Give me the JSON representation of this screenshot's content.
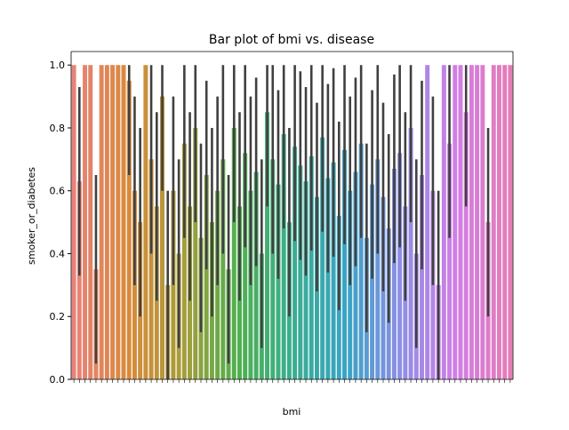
{
  "chart_data": {
    "type": "bar",
    "title": "Bar plot of bmi vs. disease",
    "x_label": "bmi",
    "y_label": "smoker_or_diabetes",
    "ylim": [
      0,
      1.043
    ],
    "yticks": [
      {
        "value": 0,
        "label": "0.0"
      },
      {
        "value": 0.2,
        "label": "0.2"
      },
      {
        "value": 0.4,
        "label": "0.4"
      },
      {
        "value": 0.6,
        "label": "0.6"
      },
      {
        "value": 0.8,
        "label": "0.8"
      },
      {
        "value": 1,
        "label": "1.0"
      }
    ],
    "palette": [
      "#e8827a",
      "#d98a3a",
      "#a69d3a",
      "#4fb04e",
      "#3aae8f",
      "#3aa4c6",
      "#8e8ee6",
      "#d17ee6",
      "#e57cb7"
    ],
    "error_color": "#404040",
    "categories": [
      null,
      null,
      null,
      null,
      null,
      null,
      null,
      null,
      null,
      null,
      null,
      null,
      null,
      null,
      null,
      null,
      null,
      null,
      null,
      null,
      null,
      null,
      null,
      null,
      null,
      null,
      null,
      null,
      null,
      null,
      null,
      null,
      null,
      null,
      null,
      null,
      null,
      null,
      null,
      null,
      null,
      null,
      null,
      null,
      null,
      null,
      null,
      null,
      null,
      null,
      null,
      null,
      null,
      null,
      null,
      null,
      null,
      null,
      null,
      null,
      null,
      null,
      null,
      null,
      null,
      null,
      null,
      null,
      null,
      null,
      null,
      null,
      null,
      null,
      null,
      null,
      null,
      null,
      null,
      null
    ],
    "values": [
      1,
      0.63,
      1,
      1,
      0.35,
      1,
      1,
      1,
      1,
      1,
      0.95,
      0.6,
      0.5,
      1,
      0.7,
      0.55,
      0.9,
      0.3,
      0.6,
      0.4,
      0.75,
      0.55,
      0.8,
      0.45,
      0.65,
      0.5,
      0.6,
      0.7,
      0.35,
      0.8,
      0.55,
      0.72,
      0.6,
      0.66,
      0.4,
      0.85,
      0.7,
      0.62,
      0.78,
      0.5,
      0.74,
      0.68,
      0.63,
      0.71,
      0.58,
      0.77,
      0.64,
      0.69,
      0.52,
      0.73,
      0.6,
      0.66,
      0.75,
      0.45,
      0.62,
      0.7,
      0.58,
      0.48,
      0.67,
      0.72,
      0.55,
      0.8,
      0.4,
      0.65,
      1,
      0.6,
      0.3,
      1,
      0.75,
      1,
      1,
      0.85,
      1,
      1,
      1,
      0.5,
      1,
      1,
      1,
      1
    ],
    "ci_low": [
      null,
      0.33,
      null,
      null,
      0.05,
      null,
      null,
      null,
      null,
      null,
      0.65,
      0.3,
      0.2,
      null,
      0.4,
      0.25,
      0.6,
      0,
      0.3,
      0.1,
      0.45,
      0.25,
      0.5,
      0.15,
      0.35,
      0.2,
      0.3,
      0.4,
      0.05,
      0.5,
      0.25,
      0.42,
      0.3,
      0.36,
      0.1,
      0.55,
      0.4,
      0.32,
      0.48,
      0.2,
      0.44,
      0.38,
      0.33,
      0.41,
      0.28,
      0.47,
      0.34,
      0.39,
      0.22,
      0.43,
      0.3,
      0.36,
      0.45,
      0.15,
      0.32,
      0.4,
      0.28,
      0.18,
      0.37,
      0.42,
      0.25,
      0.5,
      0.1,
      0.35,
      null,
      0.3,
      0,
      null,
      0.45,
      null,
      null,
      0.55,
      null,
      null,
      null,
      0.2,
      null,
      null,
      null,
      null
    ],
    "ci_high": [
      null,
      0.93,
      null,
      null,
      0.65,
      null,
      null,
      null,
      null,
      null,
      1,
      0.9,
      0.8,
      null,
      1,
      0.85,
      1,
      0.6,
      0.9,
      0.7,
      1,
      0.85,
      1,
      0.75,
      0.95,
      0.8,
      0.9,
      1,
      0.65,
      1,
      0.85,
      1,
      0.9,
      0.96,
      0.7,
      1,
      1,
      0.92,
      1,
      0.8,
      1,
      0.98,
      0.93,
      1,
      0.88,
      1,
      0.94,
      0.99,
      0.82,
      1,
      0.9,
      0.96,
      1,
      0.75,
      0.92,
      1,
      0.88,
      0.78,
      0.97,
      1,
      0.85,
      1,
      0.7,
      0.95,
      null,
      0.9,
      0.6,
      null,
      1,
      null,
      null,
      1,
      null,
      null,
      null,
      0.8,
      null,
      null,
      null,
      null
    ]
  }
}
